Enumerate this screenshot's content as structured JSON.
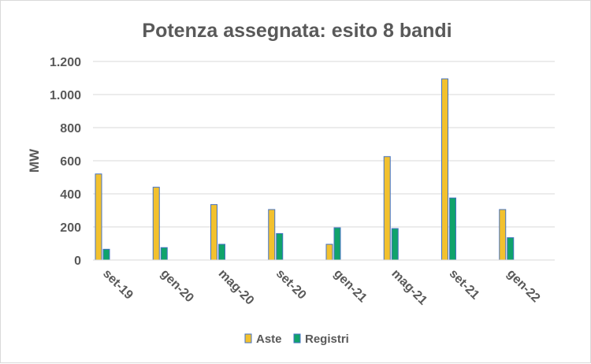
{
  "chart_data": {
    "type": "bar",
    "title": "Potenza assegnata: esito 8 bandi",
    "xlabel": "",
    "ylabel": "MW",
    "categories": [
      "set-19",
      "gen-20",
      "mag-20",
      "set-20",
      "gen-21",
      "mag-21",
      "set-21",
      "gen-22"
    ],
    "series": [
      {
        "name": "Aste",
        "color": "#f2c12e",
        "values": [
          520,
          440,
          335,
          305,
          95,
          625,
          1095,
          305
        ]
      },
      {
        "name": "Registri",
        "color": "#10a36b",
        "values": [
          65,
          75,
          95,
          160,
          195,
          190,
          375,
          135
        ]
      }
    ],
    "ylim": [
      0,
      1200
    ],
    "yticks": [
      0,
      200,
      400,
      600,
      800,
      1000,
      1200
    ],
    "ytick_labels": [
      "0",
      "200",
      "400",
      "600",
      "800",
      "1.000",
      "1.200"
    ],
    "grid": true,
    "legend": "bottom",
    "bar_outline_color": "#4472c4"
  }
}
